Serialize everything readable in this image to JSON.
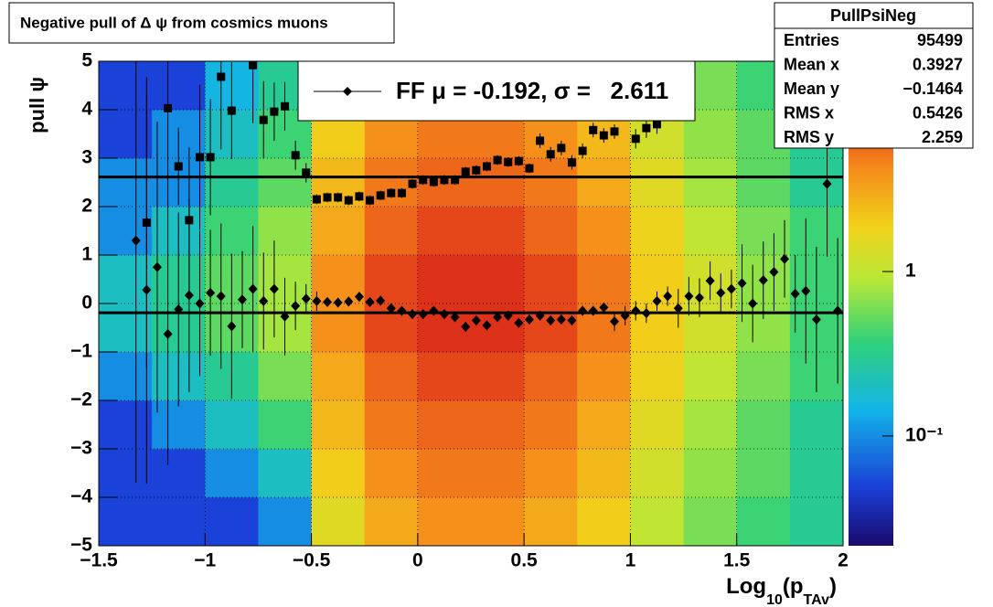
{
  "chart_data": {
    "type": "profile2d",
    "title": "Negative pull of Δ ψ from cosmics muons",
    "y_label": "pull ψ",
    "x_label": [
      "Log",
      "10",
      "(p",
      "TAv",
      ")"
    ],
    "xlim": [
      -1.5,
      2
    ],
    "ylim": [
      -5,
      5
    ],
    "xticks": [
      {
        "value": -1.5,
        "label": "−1.5"
      },
      {
        "value": -1,
        "label": "−1"
      },
      {
        "value": -0.5,
        "label": "−0.5"
      },
      0,
      0.5,
      1,
      1.5,
      2
    ],
    "yticks": [
      {
        "value": -5,
        "label": "−5"
      },
      {
        "value": -4,
        "label": "−4"
      },
      {
        "value": -3,
        "label": "−3"
      },
      {
        "value": -2,
        "label": "−2"
      },
      {
        "value": -1,
        "label": "−1"
      },
      0,
      1,
      2,
      3,
      4,
      5
    ],
    "zlim": [
      0.0215,
      19
    ],
    "zticks": [
      {
        "value": 0.1,
        "label": "10⁻¹"
      },
      1
    ],
    "log_z": true,
    "grid": true,
    "heatmap": {
      "xbins": [
        -1.5,
        -1.25,
        -1,
        -0.75,
        -0.5,
        -0.25,
        0,
        0.25,
        0.5,
        0.75,
        1,
        1.25,
        1.5,
        1.75,
        2
      ],
      "ybins": [
        -5,
        -4,
        -3,
        -2,
        -1,
        0,
        1,
        2,
        3,
        4,
        5
      ],
      "z": [
        [
          0.05,
          0.05,
          0.05,
          0.1,
          1.5,
          3,
          4,
          4,
          3,
          2,
          1,
          0.6,
          0.4,
          0.3
        ],
        [
          0.05,
          0.05,
          0.1,
          0.2,
          2,
          4,
          5,
          5,
          4,
          2.5,
          1.2,
          0.7,
          0.5,
          0.3
        ],
        [
          0.05,
          0.1,
          0.2,
          0.4,
          2.5,
          5,
          6,
          6,
          5,
          3,
          1.5,
          0.8,
          0.5,
          0.3
        ],
        [
          0.1,
          0.2,
          0.3,
          0.6,
          3,
          6,
          8,
          8,
          6,
          4,
          1.8,
          1,
          0.6,
          0.4
        ],
        [
          0.2,
          0.3,
          0.5,
          0.8,
          4,
          8,
          10,
          10,
          8,
          5,
          2,
          1.2,
          0.7,
          0.4
        ],
        [
          0.2,
          0.3,
          0.5,
          0.8,
          4,
          8,
          10,
          10,
          8,
          5,
          2,
          1.2,
          0.7,
          0.4
        ],
        [
          0.1,
          0.2,
          0.4,
          0.7,
          3,
          6,
          8,
          8,
          6,
          4,
          1.8,
          1,
          0.6,
          0.4
        ],
        [
          0.1,
          0.1,
          0.3,
          0.5,
          2.5,
          5,
          6,
          6,
          5,
          3,
          1.5,
          0.8,
          0.5,
          0.3
        ],
        [
          0.05,
          0.1,
          0.2,
          0.4,
          2,
          4,
          5,
          5,
          4,
          2.5,
          1.2,
          0.7,
          0.5,
          0.3
        ],
        [
          0.05,
          0.05,
          0.15,
          0.3,
          1.5,
          3,
          4,
          4,
          3,
          2,
          1,
          0.6,
          0.4,
          0.3
        ]
      ]
    },
    "x": [
      -1.325,
      -1.275,
      -1.225,
      -1.175,
      -1.125,
      -1.075,
      -1.025,
      -0.975,
      -0.925,
      -0.875,
      -0.825,
      -0.775,
      -0.725,
      -0.675,
      -0.625,
      -0.575,
      -0.525,
      -0.475,
      -0.425,
      -0.375,
      -0.325,
      -0.275,
      -0.225,
      -0.175,
      -0.125,
      -0.075,
      -0.025,
      0.025,
      0.075,
      0.125,
      0.175,
      0.225,
      0.275,
      0.325,
      0.375,
      0.425,
      0.475,
      0.525,
      0.575,
      0.625,
      0.675,
      0.725,
      0.775,
      0.825,
      0.875,
      0.925,
      0.975,
      1.025,
      1.075,
      1.125,
      1.175,
      1.225,
      1.275,
      1.325,
      1.375,
      1.425,
      1.475,
      1.525,
      1.575,
      1.625,
      1.675,
      1.725,
      1.775,
      1.825,
      1.875,
      1.925,
      1.975
    ],
    "series": [
      {
        "marker": "square",
        "color": "#000000",
        "values": [
          null,
          1.67,
          null,
          4.03,
          2.83,
          1.72,
          3.02,
          3.02,
          4.68,
          3.98,
          null,
          4.92,
          3.79,
          3.96,
          4.07,
          3.06,
          2.7,
          2.15,
          2.19,
          2.19,
          2.13,
          2.21,
          2.13,
          2.23,
          2.28,
          2.28,
          2.47,
          2.55,
          2.51,
          2.55,
          2.55,
          2.72,
          2.75,
          2.83,
          2.96,
          2.92,
          2.94,
          2.79,
          3.36,
          3.08,
          3.21,
          2.91,
          3.15,
          3.58,
          3.47,
          3.55,
          null,
          3.4,
          3.62,
          3.7,
          null,
          null,
          4.66,
          null,
          null,
          null,
          null,
          null,
          null,
          null,
          null,
          null,
          null,
          null,
          null,
          null,
          null
        ],
        "errors": [
          null,
          3,
          null,
          2,
          0.8,
          1.5,
          1.5,
          1.2,
          1.5,
          1,
          null,
          1.2,
          0.8,
          0.6,
          0.5,
          0.3,
          0.2,
          0.1,
          0.1,
          0.1,
          0.1,
          0.1,
          0.1,
          0.1,
          0.1,
          0.1,
          0.1,
          0.1,
          0.1,
          0.1,
          0.1,
          0.1,
          0.1,
          0.1,
          0.1,
          0.1,
          0.1,
          0.1,
          0.15,
          0.15,
          0.15,
          0.15,
          0.15,
          0.15,
          0.15,
          0.15,
          null,
          0.2,
          0.2,
          0.2,
          null,
          null,
          0.5,
          null,
          null,
          null,
          null,
          null,
          null,
          null,
          null,
          null,
          null,
          null,
          null,
          null,
          null
        ]
      },
      {
        "marker": "diamond",
        "color": "#000000",
        "values": [
          1.3,
          0.28,
          0.75,
          -0.63,
          -0.12,
          0.17,
          0.0,
          0.22,
          0.15,
          -0.47,
          0.08,
          0.3,
          0.05,
          0.3,
          -0.27,
          -0.05,
          0.1,
          0.05,
          0.03,
          0.02,
          0.04,
          0.14,
          0.03,
          0.06,
          -0.1,
          -0.15,
          -0.22,
          -0.22,
          -0.15,
          -0.22,
          -0.28,
          -0.48,
          -0.35,
          -0.45,
          -0.28,
          -0.25,
          -0.4,
          -0.33,
          -0.25,
          -0.35,
          -0.33,
          -0.35,
          -0.15,
          -0.15,
          -0.08,
          -0.37,
          -0.25,
          -0.15,
          -0.2,
          0.05,
          0.15,
          -0.1,
          0.15,
          0.12,
          0.47,
          0.22,
          0.3,
          0.42,
          0.0,
          0.48,
          0.65,
          0.92,
          0.2,
          0.26,
          -0.33,
          2.47,
          -0.15
        ],
        "errors": [
          5,
          4,
          3,
          2.7,
          2,
          2,
          1.5,
          1.3,
          1.5,
          1.5,
          1,
          1.3,
          1,
          1,
          0.8,
          0.5,
          0.3,
          0.2,
          0.1,
          0.1,
          0.1,
          0.1,
          0.1,
          0.1,
          0.1,
          0.1,
          0.1,
          0.1,
          0.1,
          0.1,
          0.1,
          0.1,
          0.1,
          0.1,
          0.1,
          0.1,
          0.1,
          0.1,
          0.1,
          0.1,
          0.1,
          0.1,
          0.1,
          0.1,
          0.1,
          0.2,
          0.2,
          0.2,
          0.2,
          0.2,
          0.2,
          0.4,
          0.4,
          0.4,
          0.4,
          0.4,
          0.4,
          0.8,
          0.8,
          0.8,
          0.8,
          0.8,
          0.8,
          1.5,
          1.5,
          1.5,
          1.5
        ]
      }
    ],
    "fit": {
      "mu": -0.192,
      "sigma": 2.611
    },
    "legend": "FF μ = -0.192, σ =   2.611",
    "stats": {
      "name": "PullPsiNeg",
      "rows": [
        [
          "Entries",
          "95499"
        ],
        [
          "Mean x",
          "0.3927"
        ],
        [
          "Mean y",
          "−0.1464"
        ],
        [
          "RMS x",
          "0.5426"
        ],
        [
          "RMS y",
          "2.259"
        ]
      ]
    }
  }
}
